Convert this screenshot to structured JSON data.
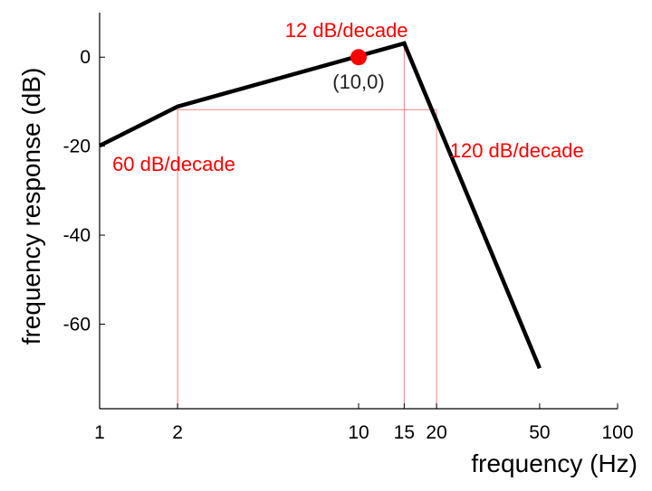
{
  "chart_data": {
    "type": "line",
    "x_scale": "log",
    "xlabel": "frequency (Hz)",
    "ylabel": "frequency response (dB)",
    "xlim": [
      1,
      100
    ],
    "ylim": [
      -79,
      10
    ],
    "x_ticks": [
      1,
      2,
      10,
      15,
      20,
      50,
      100
    ],
    "x_tick_labels": [
      "1",
      "2",
      "10",
      "15",
      "20",
      "50",
      "100"
    ],
    "y_ticks": [
      0,
      -20,
      -40,
      -60
    ],
    "y_tick_labels": [
      "0",
      "-20",
      "-40",
      "-60"
    ],
    "grid": false,
    "series": [
      {
        "color": "#000000",
        "points": [
          {
            "x": 1,
            "y": -19.9
          },
          {
            "x": 2,
            "y": -11.1
          },
          {
            "x": 15,
            "y": 3.1
          },
          {
            "x": 50,
            "y": -69.9
          }
        ]
      }
    ],
    "guide_lines": {
      "color": "#f08080",
      "verticals": [
        {
          "x": 2,
          "y_top": -11.8
        },
        {
          "x": 15,
          "y_top": 3.1
        },
        {
          "x": 20,
          "y_top": -11.8
        }
      ],
      "horizontal": {
        "y": -11.8,
        "x_from": 2,
        "x_to": 20
      }
    },
    "marker": {
      "x": 10,
      "y": 0,
      "color": "#ff0000",
      "label": "(10,0)"
    },
    "annotations": [
      {
        "text": "12 dB/decade",
        "x": 5.2,
        "y": 4.5,
        "color": "#ff0000"
      },
      {
        "text": "60 dB/decade",
        "x": 1.12,
        "y": -25.6,
        "color": "#ff0000"
      },
      {
        "text": "120 dB/decade",
        "x": 22.5,
        "y": -22.5,
        "color": "#ff0000"
      }
    ]
  }
}
